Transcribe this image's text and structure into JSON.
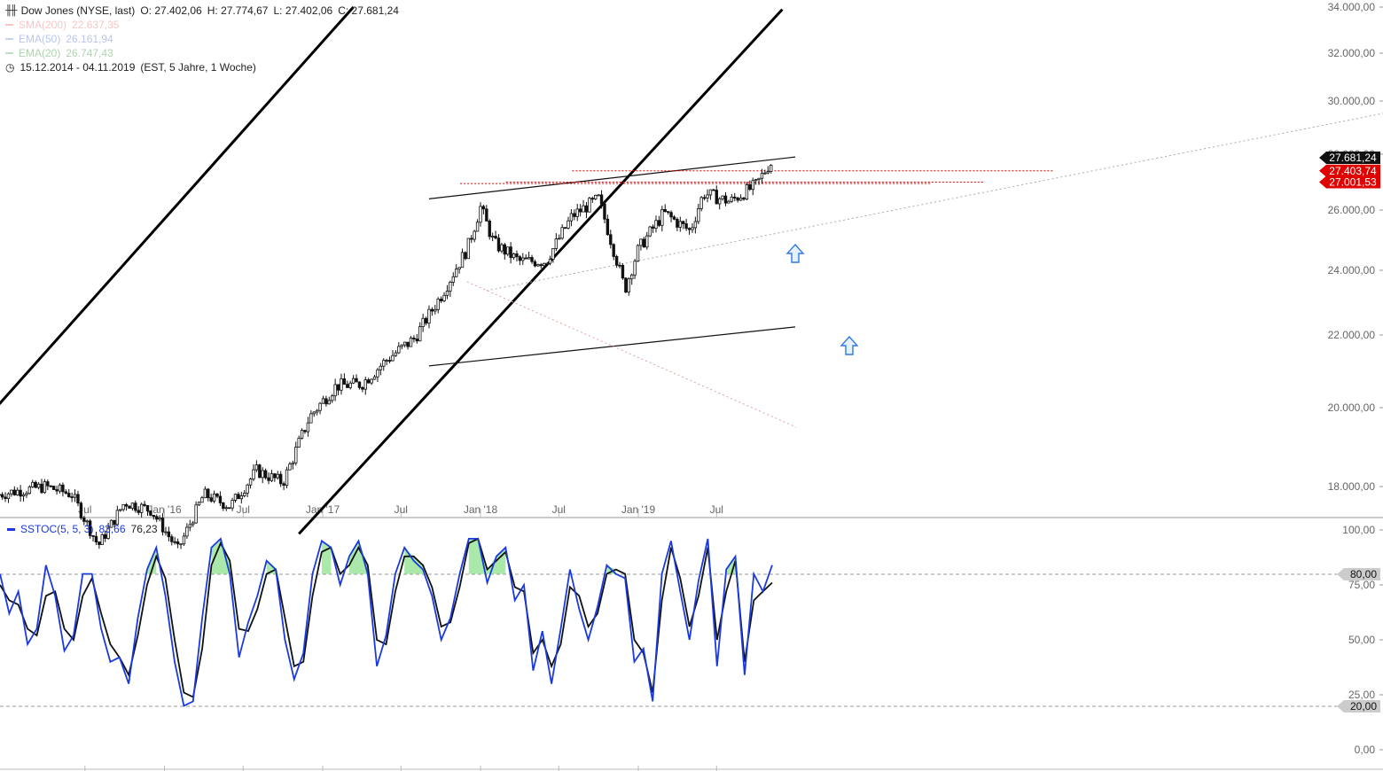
{
  "header": {
    "icon": "ohlc-bars-icon",
    "instrument": "Dow Jones (NYSE, last)",
    "ohlc": [
      {
        "label": "O:",
        "value": "27.402,06"
      },
      {
        "label": "H:",
        "value": "27.774,67"
      },
      {
        "label": "L:",
        "value": "27.402,06"
      },
      {
        "label": "C:",
        "value": "27.681,24"
      }
    ],
    "indicators": [
      {
        "name": "SMA(200)",
        "value": "22.637,35",
        "color": "#f08080"
      },
      {
        "name": "EMA(50)",
        "value": "26.161,94",
        "color": "#8aa0e0"
      },
      {
        "name": "EMA(20)",
        "value": "26.747,43",
        "color": "#7ab87a"
      }
    ],
    "range_icon": "clock-icon",
    "range": "15.12.2014 - 04.11.2019",
    "range_info": "(EST, 5 Jahre, 1 Woche)"
  },
  "oscillator": {
    "name": "SSTOC(5, 5, 3)",
    "k_value": "83,66",
    "d_value": "76,23",
    "k_color": "#1a3adf",
    "d_color": "#111111",
    "fill_color": "#9be59b"
  },
  "price_badges": [
    {
      "text": "27.681,24",
      "bg": "#111111"
    },
    {
      "text": "27.403,74",
      "bg": "#e00000"
    },
    {
      "text": "27.001,53",
      "bg": "#e00000"
    }
  ],
  "osc_badges": [
    {
      "text": "80,00",
      "bg": "#cccccc"
    },
    {
      "text": "20,00",
      "bg": "#cccccc"
    }
  ],
  "arrow_icons": [
    "up-arrow-icon",
    "up-arrow-icon"
  ],
  "chart_data": [
    {
      "type": "ohlc",
      "title": "Dow Jones (NYSE, last)",
      "interval": "1 Woche",
      "x_tick_labels": [
        "Jul",
        "Jan '16",
        "Jul",
        "Jan '17",
        "Jul",
        "Jan '18",
        "Jul",
        "Jan '19",
        "Jul"
      ],
      "y_ticks": [
        "18.000,00",
        "20.000,00",
        "22.000,00",
        "24.000,00",
        "26.000,00",
        "28.000,00",
        "30.000,00",
        "32.000,00",
        "34.000,00"
      ],
      "y_tick_values": [
        18000,
        20000,
        22000,
        24000,
        26000,
        28000,
        30000,
        32000,
        34000
      ],
      "ylim": [
        16800,
        34000
      ],
      "x_range": [
        "2014-12-15",
        "2019-11-04"
      ],
      "grid": false,
      "series": [
        {
          "name": "Dow Jones",
          "x": [
            "2014-12",
            "2015-02",
            "2015-04",
            "2015-06",
            "2015-08",
            "2015-10",
            "2015-12",
            "2016-02",
            "2016-04",
            "2016-06",
            "2016-08",
            "2016-10",
            "2016-12",
            "2017-02",
            "2017-04",
            "2017-06",
            "2017-08",
            "2017-10",
            "2017-12",
            "2018-01",
            "2018-02",
            "2018-04",
            "2018-06",
            "2018-08",
            "2018-10",
            "2018-12",
            "2019-01",
            "2019-03",
            "2019-05",
            "2019-06",
            "2019-08",
            "2019-10",
            "2019-11"
          ],
          "close": [
            17800,
            17900,
            18000,
            17800,
            16500,
            17600,
            17400,
            16400,
            17800,
            17500,
            18400,
            18100,
            19750,
            20600,
            20650,
            21350,
            21900,
            23200,
            24700,
            26100,
            24900,
            24300,
            24300,
            25800,
            26400,
            23400,
            24700,
            25900,
            25300,
            26600,
            26300,
            26900,
            27681
          ]
        }
      ],
      "trend_lines": [
        {
          "name": "upper channel",
          "from": [
            "2014-12-15",
            20100
          ],
          "to": [
            "2017-03-13",
            34000
          ]
        },
        {
          "name": "lower channel",
          "from": [
            "2016-11-07",
            16800
          ],
          "to": [
            "2019-11-30",
            33900
          ]
        },
        {
          "name": "wedge top",
          "from": [
            "2017-09-04",
            26400
          ],
          "to": [
            "2019-12-30",
            27900
          ]
        },
        {
          "name": "wedge bottom",
          "from": [
            "2017-09-04",
            21150
          ],
          "to": [
            "2019-12-30",
            22250
          ]
        }
      ],
      "horizontal_levels": [
        27403.74,
        27001.53,
        26950
      ]
    },
    {
      "type": "line",
      "title": "SSTOC(5, 5, 3)",
      "y_ticks": [
        "0,00",
        "25,00",
        "50,00",
        "75,00",
        "100,00"
      ],
      "y_tick_values": [
        0,
        25,
        50,
        75,
        100
      ],
      "ylim": [
        0,
        100
      ],
      "reference_lines": [
        80,
        20
      ],
      "series": [
        {
          "name": "%K",
          "values": [
            80,
            62,
            72,
            48,
            55,
            84,
            70,
            45,
            52,
            80,
            80,
            55,
            40,
            42,
            30,
            60,
            82,
            92,
            70,
            40,
            20,
            22,
            60,
            92,
            96,
            80,
            42,
            58,
            70,
            86,
            82,
            50,
            32,
            44,
            80,
            95,
            92,
            75,
            88,
            95,
            80,
            38,
            52,
            80,
            92,
            86,
            82,
            70,
            50,
            60,
            80,
            96,
            96,
            76,
            88,
            92,
            68,
            75,
            36,
            54,
            30,
            55,
            82,
            64,
            50,
            65,
            84,
            80,
            78,
            40,
            46,
            22,
            80,
            95,
            72,
            50,
            77,
            96,
            38,
            82,
            88,
            34,
            80,
            72,
            84
          ]
        },
        {
          "name": "%D",
          "values": [
            75,
            68,
            66,
            55,
            52,
            70,
            72,
            55,
            50,
            70,
            78,
            62,
            48,
            42,
            34,
            52,
            75,
            88,
            78,
            50,
            26,
            24,
            46,
            84,
            94,
            86,
            55,
            54,
            64,
            80,
            82,
            60,
            38,
            40,
            70,
            90,
            92,
            80,
            84,
            92,
            84,
            50,
            48,
            72,
            88,
            88,
            84,
            74,
            56,
            58,
            74,
            94,
            96,
            82,
            86,
            90,
            74,
            72,
            44,
            50,
            38,
            48,
            74,
            70,
            56,
            62,
            80,
            82,
            80,
            50,
            44,
            26,
            68,
            92,
            78,
            56,
            70,
            92,
            50,
            72,
            86,
            40,
            68,
            72,
            76
          ]
        }
      ]
    }
  ]
}
